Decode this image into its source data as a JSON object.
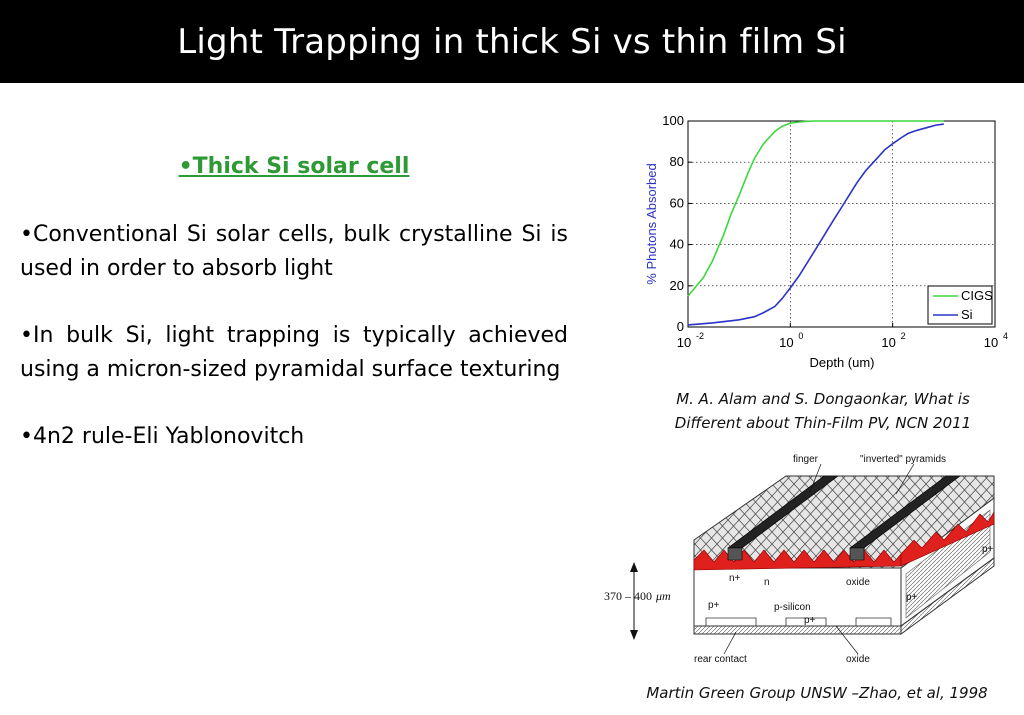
{
  "slide": {
    "title": "Light Trapping in thick Si vs thin film Si",
    "subheading": "•Thick Si solar cell",
    "bullets": [
      "•Conventional Si solar cells, bulk crystalline Si is used in order to absorb light",
      "•In bulk Si, light trapping is typically achieved using a micron-sized pyramidal surface texturing",
      "•4n2 rule-Eli Yablonovitch"
    ],
    "caption_chart_line1": "M. A. Alam and S. Dongaonkar, What is",
    "caption_chart_line2": "Different about Thin-Film PV, NCN 2011",
    "caption_diagram": "Martin Green Group UNSW –Zhao, et al, 1998",
    "colors": {
      "accent_green": "#2e9a35",
      "title_bar": "#000000"
    }
  },
  "diagram": {
    "labels": {
      "finger": "finger",
      "pyramids": "\"inverted\" pyramids",
      "n_plus": "n+",
      "n": "n",
      "oxide_top": "oxide",
      "p_plus_left": "p+",
      "p_silicon": "p-silicon",
      "p_plus_mid": "p+",
      "p_plus_right": "p+",
      "p_plus_edge": "p+",
      "rear_contact": "rear contact",
      "oxide_bottom": "oxide",
      "thickness_value": "370 – 400",
      "thickness_unit": "μm"
    }
  },
  "chart_data": {
    "type": "line",
    "title": "",
    "xlabel": "Depth (um)",
    "ylabel": "% Photons Absorbed",
    "x_scale": "log",
    "xlim": [
      0.01,
      10000
    ],
    "ylim": [
      0,
      100
    ],
    "x_ticks": [
      0.01,
      1,
      100,
      10000
    ],
    "x_tick_labels": [
      {
        "base": "10",
        "exp": "-2"
      },
      {
        "base": "10",
        "exp": "0"
      },
      {
        "base": "10",
        "exp": "2"
      },
      {
        "base": "10",
        "exp": "4"
      }
    ],
    "y_ticks": [
      0,
      20,
      40,
      60,
      80,
      100
    ],
    "grid": true,
    "legend_position": "bottom-right",
    "series": [
      {
        "name": "CIGS",
        "color": "#3bd83b",
        "x": [
          0.01,
          0.02,
          0.03,
          0.05,
          0.07,
          0.1,
          0.15,
          0.2,
          0.3,
          0.5,
          0.7,
          1,
          1.5,
          2,
          3,
          5,
          10,
          20,
          50,
          100,
          300,
          1000
        ],
        "y": [
          15,
          24,
          32,
          45,
          55,
          64,
          75,
          82,
          89,
          95,
          97.5,
          99,
          99.5,
          99.8,
          100,
          100,
          100,
          100,
          100,
          100,
          100,
          100
        ]
      },
      {
        "name": "Si",
        "color": "#2a33c7",
        "x": [
          0.01,
          0.03,
          0.1,
          0.2,
          0.3,
          0.5,
          0.7,
          1,
          1.5,
          2,
          3,
          5,
          7,
          10,
          15,
          20,
          30,
          50,
          70,
          100,
          150,
          200,
          300,
          500,
          700,
          1000
        ],
        "y": [
          1,
          2,
          3.5,
          5,
          7,
          10,
          14,
          19,
          25,
          30,
          37,
          46,
          52,
          58,
          65,
          70,
          76,
          82,
          86,
          89,
          92,
          94,
          95.5,
          97,
          98,
          98.5
        ]
      }
    ]
  }
}
